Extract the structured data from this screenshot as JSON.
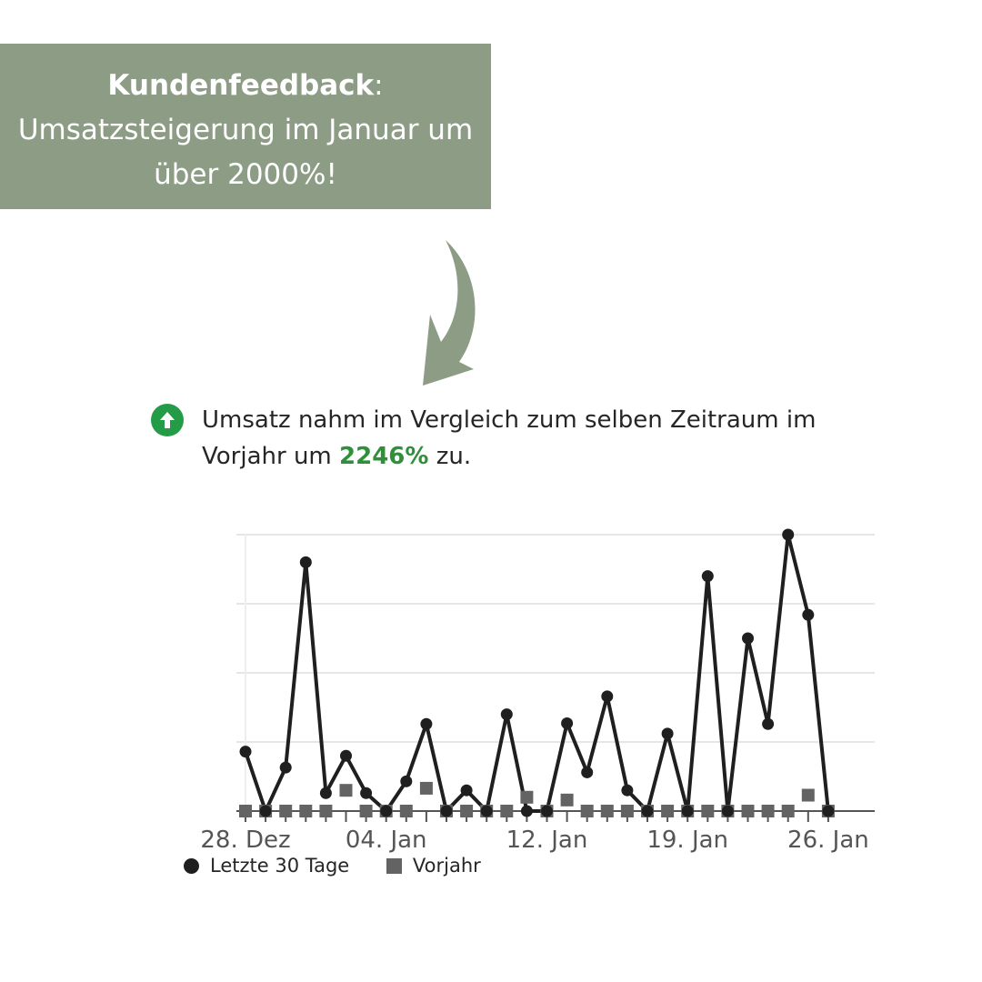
{
  "banner": {
    "title_bold": "Kundenfeedback",
    "title_suffix": ":",
    "line2": "Umsatzsteigerung im Januar um",
    "line3": "über 2000%!"
  },
  "headline": {
    "text_before": "Umsatz nahm im Vergleich zum selben Zeitraum im Vorjahr um ",
    "highlight": "2246%",
    "text_after": " zu."
  },
  "colors": {
    "banner_bg": "#8d9c84",
    "arrow": "#8d9c84",
    "positive_green": "#239b47",
    "series_current": "#1f1f1f",
    "series_previous": "#636363"
  },
  "chart_data": {
    "type": "line",
    "x_tick_labels": [
      {
        "label": "28. Dez",
        "index": 0
      },
      {
        "label": "04. Jan",
        "index": 7
      },
      {
        "label": "12. Jan",
        "index": 15
      },
      {
        "label": "19. Jan",
        "index": 22
      },
      {
        "label": "26. Jan",
        "index": 29
      }
    ],
    "ylim": [
      0,
      4
    ],
    "grid": true,
    "legend_position": "bottom-left",
    "series": [
      {
        "name": "Letzte 30 Tage",
        "marker": "circle",
        "values": [
          0.86,
          0,
          0.63,
          3.6,
          0.26,
          0.8,
          0.26,
          0,
          0.43,
          1.26,
          0,
          0.3,
          0,
          1.4,
          0,
          0,
          1.27,
          0.56,
          1.66,
          0.3,
          0,
          1.12,
          0,
          3.4,
          0,
          2.5,
          1.26,
          4.0,
          2.84,
          0
        ]
      },
      {
        "name": "Vorjahr",
        "marker": "square",
        "values": [
          0,
          0,
          0,
          0,
          0,
          0.3,
          0,
          0,
          0,
          0.33,
          0,
          0,
          0,
          0,
          0.2,
          0,
          0.16,
          0,
          0,
          0,
          0,
          0,
          0,
          0,
          0,
          0,
          0,
          0,
          0.23,
          0
        ]
      }
    ]
  },
  "legend": {
    "items": [
      "Letzte 30 Tage",
      "Vorjahr"
    ]
  }
}
